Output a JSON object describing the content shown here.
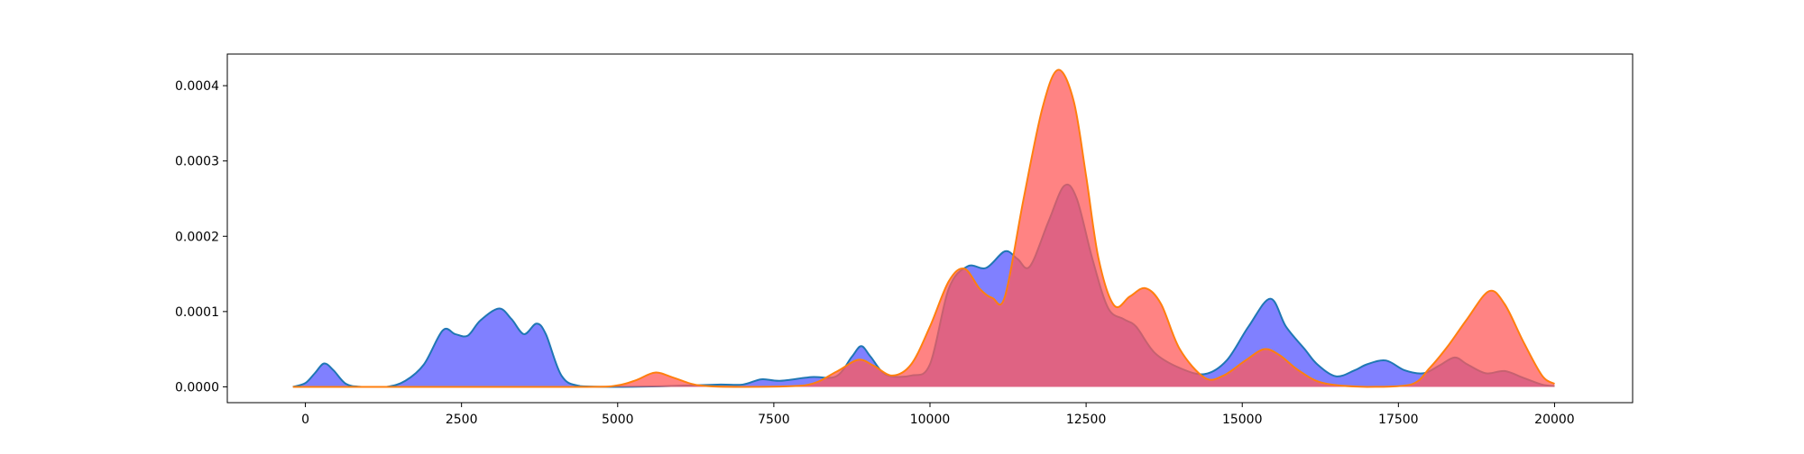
{
  "chart_data": {
    "type": "area",
    "title": "",
    "xlabel": "",
    "ylabel": "",
    "xlim": [
      -1250,
      21250
    ],
    "ylim": [
      -2.1e-05,
      0.000442
    ],
    "x_ticks": [
      0,
      2500,
      5000,
      7500,
      10000,
      12500,
      15000,
      17500,
      20000
    ],
    "x_tick_labels": [
      "0",
      "2500",
      "5000",
      "7500",
      "10000",
      "12500",
      "15000",
      "17500",
      "20000"
    ],
    "y_ticks": [
      0.0,
      0.0001,
      0.0002,
      0.0003,
      0.0004
    ],
    "y_tick_labels": [
      "0.0000",
      "0.0001",
      "0.0002",
      "0.0003",
      "0.0004"
    ],
    "grid": false,
    "legend": "none",
    "series": [
      {
        "fill_color": "#8080ff",
        "line_color": "#1f77b4",
        "fill_opacity": 1.0,
        "points": [
          [
            -200,
            0.0
          ],
          [
            0,
            5e-06
          ],
          [
            150,
            1.8e-05
          ],
          [
            300,
            3.1e-05
          ],
          [
            450,
            2.2e-05
          ],
          [
            650,
            4e-06
          ],
          [
            900,
            0.0
          ],
          [
            1300,
            0.0
          ],
          [
            1600,
            8e-06
          ],
          [
            1900,
            3e-05
          ],
          [
            2200,
            7.5e-05
          ],
          [
            2400,
            7e-05
          ],
          [
            2600,
            6.8e-05
          ],
          [
            2800,
            8.8e-05
          ],
          [
            3100,
            0.000104
          ],
          [
            3300,
            9e-05
          ],
          [
            3500,
            7e-05
          ],
          [
            3700,
            8.4e-05
          ],
          [
            3850,
            7e-05
          ],
          [
            4100,
            1.5e-05
          ],
          [
            4400,
            1e-06
          ],
          [
            5000,
            0.0
          ],
          [
            5800,
            1e-06
          ],
          [
            6600,
            3e-06
          ],
          [
            7000,
            3e-06
          ],
          [
            7300,
            1e-05
          ],
          [
            7600,
            8e-06
          ],
          [
            8100,
            1.3e-05
          ],
          [
            8500,
            1.4e-05
          ],
          [
            8750,
            4e-05
          ],
          [
            8900,
            5.4e-05
          ],
          [
            9050,
            4e-05
          ],
          [
            9300,
            1.6e-05
          ],
          [
            9700,
            1.5e-05
          ],
          [
            10000,
            3e-05
          ],
          [
            10300,
            0.00013
          ],
          [
            10600,
            0.00016
          ],
          [
            10900,
            0.000158
          ],
          [
            11200,
            0.00018
          ],
          [
            11400,
            0.00017
          ],
          [
            11600,
            0.00016
          ],
          [
            11900,
            0.00022
          ],
          [
            12150,
            0.000267
          ],
          [
            12350,
            0.00025
          ],
          [
            12600,
            0.00017
          ],
          [
            12850,
            0.000105
          ],
          [
            13100,
            9e-05
          ],
          [
            13300,
            8e-05
          ],
          [
            13600,
            4.5e-05
          ],
          [
            14000,
            2.5e-05
          ],
          [
            14400,
            1.7e-05
          ],
          [
            14750,
            3.5e-05
          ],
          [
            15100,
            8e-05
          ],
          [
            15450,
            0.000117
          ],
          [
            15700,
            8e-05
          ],
          [
            16000,
            5e-05
          ],
          [
            16200,
            3e-05
          ],
          [
            16500,
            1.4e-05
          ],
          [
            16800,
            2.2e-05
          ],
          [
            17000,
            3e-05
          ],
          [
            17300,
            3.5e-05
          ],
          [
            17600,
            2.2e-05
          ],
          [
            17900,
            1.8e-05
          ],
          [
            18150,
            2.8e-05
          ],
          [
            18400,
            3.9e-05
          ],
          [
            18600,
            3e-05
          ],
          [
            18900,
            1.8e-05
          ],
          [
            19200,
            2.1e-05
          ],
          [
            19500,
            1.2e-05
          ],
          [
            19800,
            3e-06
          ],
          [
            20000,
            1e-06
          ]
        ]
      },
      {
        "fill_color": "#ff5a5a",
        "line_color": "#ff7f0e",
        "fill_opacity": 0.75,
        "points": [
          [
            -200,
            0.0
          ],
          [
            2000,
            0.0
          ],
          [
            4500,
            0.0
          ],
          [
            5000,
            2e-06
          ],
          [
            5300,
            9e-06
          ],
          [
            5600,
            1.9e-05
          ],
          [
            5900,
            1.2e-05
          ],
          [
            6300,
            2e-06
          ],
          [
            7000,
            0.0
          ],
          [
            8000,
            2e-06
          ],
          [
            8500,
            2e-05
          ],
          [
            8850,
            3.6e-05
          ],
          [
            9100,
            2.8e-05
          ],
          [
            9400,
            1.5e-05
          ],
          [
            9700,
            3e-05
          ],
          [
            10000,
            8e-05
          ],
          [
            10300,
            0.00014
          ],
          [
            10550,
            0.000157
          ],
          [
            10800,
            0.00013
          ],
          [
            11000,
            0.000118
          ],
          [
            11200,
            0.00012
          ],
          [
            11500,
            0.00025
          ],
          [
            11800,
            0.00037
          ],
          [
            12050,
            0.000421
          ],
          [
            12300,
            0.00038
          ],
          [
            12500,
            0.00028
          ],
          [
            12700,
            0.00017
          ],
          [
            12950,
            0.000108
          ],
          [
            13200,
            0.00012
          ],
          [
            13450,
            0.000131
          ],
          [
            13700,
            0.00011
          ],
          [
            14000,
            5e-05
          ],
          [
            14400,
            1.2e-05
          ],
          [
            14700,
            1.5e-05
          ],
          [
            15050,
            3.5e-05
          ],
          [
            15350,
            5e-05
          ],
          [
            15600,
            4.2e-05
          ],
          [
            15900,
            2.2e-05
          ],
          [
            16300,
            5e-06
          ],
          [
            17000,
            0.0
          ],
          [
            17700,
            3e-06
          ],
          [
            18000,
            2.5e-05
          ],
          [
            18300,
            5.5e-05
          ],
          [
            18600,
            9e-05
          ],
          [
            18950,
            0.000127
          ],
          [
            19200,
            0.00011
          ],
          [
            19500,
            6e-05
          ],
          [
            19800,
            1.5e-05
          ],
          [
            20000,
            4e-06
          ]
        ]
      }
    ]
  }
}
